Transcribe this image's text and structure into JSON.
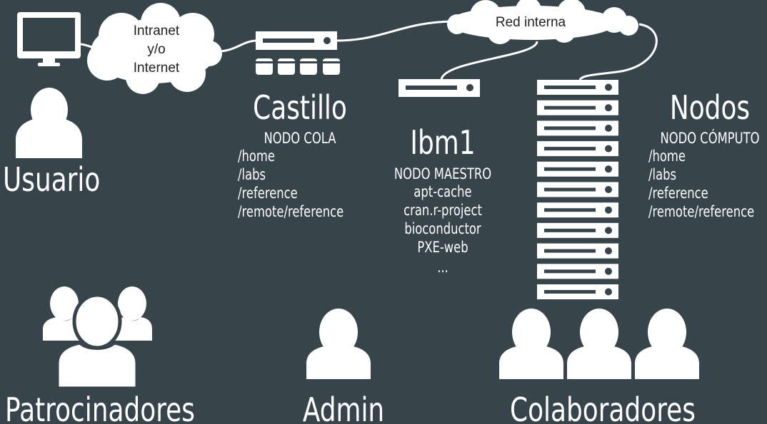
{
  "network": {
    "cloud_left_lines": [
      "Intranet",
      "y/o",
      "Internet"
    ],
    "cloud_right_label": "Red interna"
  },
  "usuario": {
    "label": "Usuario"
  },
  "castillo": {
    "title": "Castillo",
    "subtitle": "NODO COLA",
    "paths": [
      "/home",
      "/labs",
      "/reference",
      "/remote/reference"
    ]
  },
  "ibm1": {
    "title": "Ibm1",
    "subtitle": "NODO MAESTRO",
    "services": [
      "apt-cache",
      "cran.r-project",
      "bioconductor",
      "PXE-web",
      "..."
    ]
  },
  "nodos": {
    "title": "Nodos",
    "subtitle": "NODO CÓMPUTO",
    "paths": [
      "/home",
      "/labs",
      "/reference",
      "/remote/reference"
    ]
  },
  "groups": {
    "patrocinadores": "Patrocinadores",
    "admin": "Admin",
    "colaboradores": "Colaboradores"
  },
  "colors": {
    "background": "#37444c",
    "foreground": "#ffffff",
    "cloud": "#ffffff",
    "label_text": "#222222"
  }
}
